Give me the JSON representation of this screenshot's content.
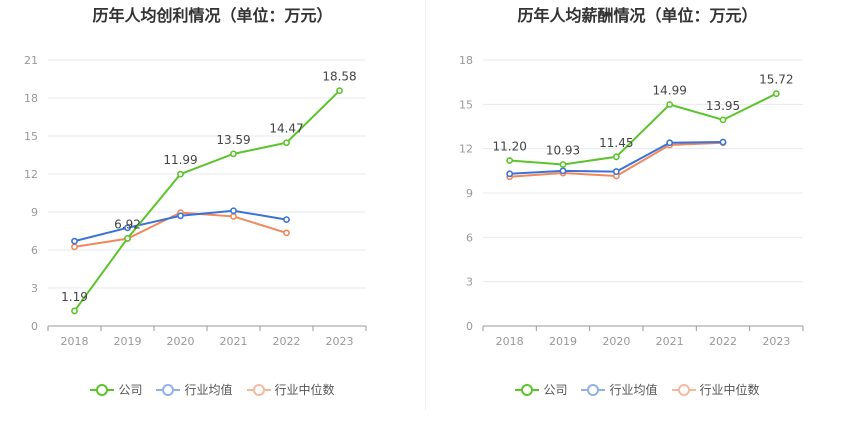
{
  "colors": {
    "company": "#5cc42b",
    "industry_avg": "#3a72d8",
    "industry_median": "#f0885a",
    "legend_avg": "#90b1ea",
    "legend_median": "#f5b9a0"
  },
  "legend": {
    "company": "公司",
    "industry_avg": "行业均值",
    "industry_median": "行业中位数"
  },
  "chart_data": [
    {
      "type": "line",
      "title": "历年人均创利情况（单位：万元）",
      "categories": [
        "2018",
        "2019",
        "2020",
        "2021",
        "2022",
        "2023"
      ],
      "yticks": [
        "0",
        "3",
        "6",
        "9",
        "12",
        "15",
        "18",
        "21"
      ],
      "ylim": [
        0,
        21
      ],
      "grid": true,
      "legend_position": "bottom",
      "series": [
        {
          "key": "company",
          "name": "公司",
          "values": [
            1.19,
            6.92,
            11.99,
            13.59,
            14.47,
            18.58
          ],
          "labels": [
            "1.19",
            "6.92",
            "11.99",
            "13.59",
            "14.47",
            "18.58"
          ]
        },
        {
          "key": "industry_avg",
          "name": "行业均值",
          "values": [
            6.7,
            7.75,
            8.7,
            9.1,
            8.4,
            null
          ]
        },
        {
          "key": "industry_median",
          "name": "行业中位数",
          "values": [
            6.25,
            6.9,
            8.95,
            8.65,
            7.35,
            null
          ]
        }
      ]
    },
    {
      "type": "line",
      "title": "历年人均薪酬情况（单位：万元）",
      "categories": [
        "2018",
        "2019",
        "2020",
        "2021",
        "2022",
        "2023"
      ],
      "yticks": [
        "0",
        "3",
        "6",
        "9",
        "12",
        "15",
        "18"
      ],
      "ylim": [
        0,
        18
      ],
      "grid": true,
      "legend_position": "bottom",
      "series": [
        {
          "key": "company",
          "name": "公司",
          "values": [
            11.2,
            10.93,
            11.45,
            14.99,
            13.95,
            15.72
          ],
          "labels": [
            "11.20",
            "10.93",
            "11.45",
            "14.99",
            "13.95",
            "15.72"
          ]
        },
        {
          "key": "industry_avg",
          "name": "行业均值",
          "values": [
            10.3,
            10.5,
            10.45,
            12.4,
            12.45,
            null
          ]
        },
        {
          "key": "industry_median",
          "name": "行业中位数",
          "values": [
            10.1,
            10.35,
            10.15,
            12.25,
            12.4,
            null
          ]
        }
      ]
    }
  ]
}
